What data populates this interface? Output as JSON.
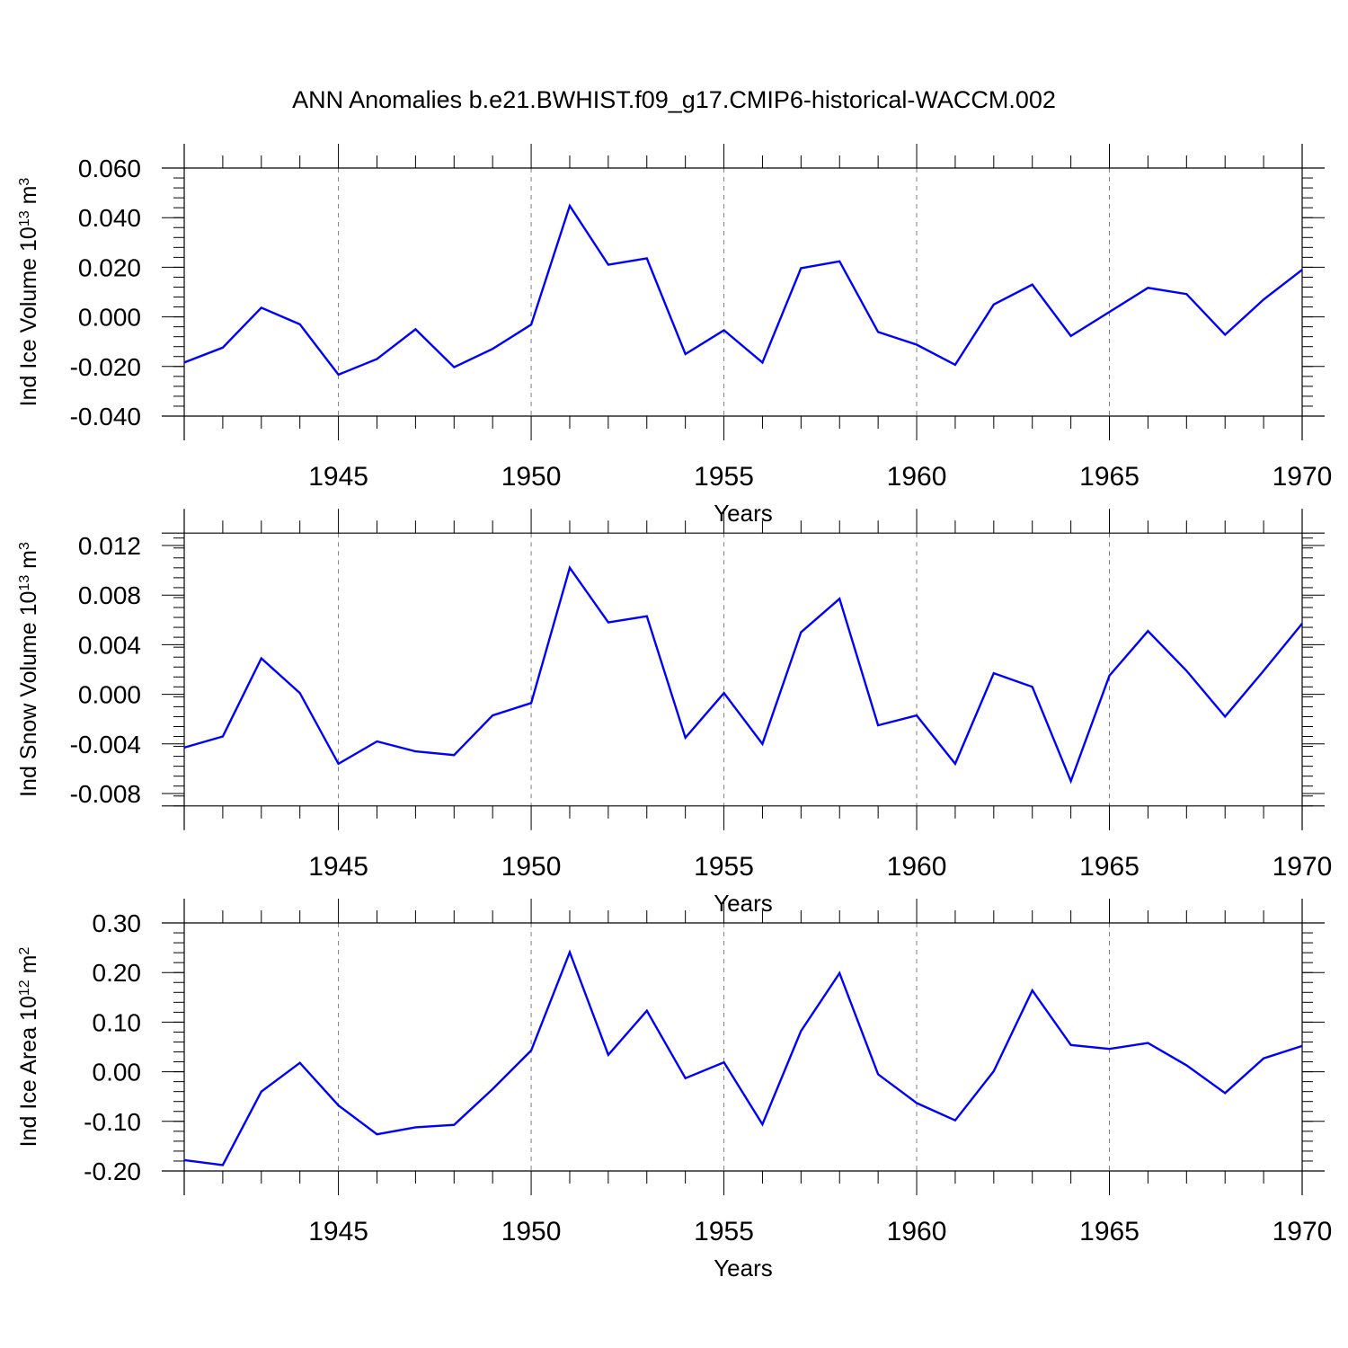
{
  "title": "ANN Anomalies b.e21.BWHIST.f09_g17.CMIP6-historical-WACCM.002",
  "colors": {
    "line": "#0000ff",
    "axis": "#000000",
    "grid": "#808080"
  },
  "chart_data": [
    {
      "type": "line",
      "xlabel": "Years",
      "ylabel": {
        "prefix": "Ind Ice Volume 10",
        "exp": "13",
        "unit": " m",
        "unit_exp": "3"
      },
      "xlim": [
        1941,
        1970
      ],
      "ylim": [
        -0.04,
        0.06
      ],
      "yticks": [
        "-0.040",
        "-0.020",
        "0.000",
        "0.020",
        "0.040",
        "0.060"
      ],
      "ytick_values": [
        -0.04,
        -0.02,
        0.0,
        0.02,
        0.04,
        0.06
      ],
      "xticks": [
        "1945",
        "1950",
        "1955",
        "1960",
        "1965",
        "1970"
      ],
      "xtick_values": [
        1945,
        1950,
        1955,
        1960,
        1965,
        1970
      ],
      "grid": "vertical dashed at major x ticks",
      "x": [
        1941,
        1942,
        1943,
        1944,
        1945,
        1946,
        1947,
        1948,
        1949,
        1950,
        1951,
        1952,
        1953,
        1954,
        1955,
        1956,
        1957,
        1958,
        1959,
        1960,
        1961,
        1962,
        1963,
        1964,
        1965,
        1966,
        1967,
        1968,
        1969,
        1970
      ],
      "values": [
        -0.0184,
        -0.0124,
        0.0037,
        -0.003,
        -0.0233,
        -0.017,
        -0.005,
        -0.0203,
        -0.0129,
        -0.0031,
        0.0448,
        0.021,
        0.0236,
        -0.015,
        -0.0054,
        -0.0184,
        0.0196,
        0.0224,
        -0.0061,
        -0.0112,
        -0.0193,
        0.005,
        0.013,
        -0.0077,
        0.002,
        0.0117,
        0.0092,
        -0.0072,
        0.007,
        0.019
      ]
    },
    {
      "type": "line",
      "xlabel": "Years",
      "ylabel": {
        "prefix": "Ind Snow Volume 10",
        "exp": "13",
        "unit": " m",
        "unit_exp": "3"
      },
      "xlim": [
        1941,
        1970
      ],
      "ylim": [
        -0.009,
        0.013
      ],
      "yticks": [
        "-0.008",
        "-0.004",
        "0.000",
        "0.004",
        "0.008",
        "0.012"
      ],
      "ytick_values": [
        -0.008,
        -0.004,
        0.0,
        0.004,
        0.008,
        0.012
      ],
      "xticks": [
        "1945",
        "1950",
        "1955",
        "1960",
        "1965",
        "1970"
      ],
      "xtick_values": [
        1945,
        1950,
        1955,
        1960,
        1965,
        1970
      ],
      "grid": "vertical dashed at major x ticks",
      "x": [
        1941,
        1942,
        1943,
        1944,
        1945,
        1946,
        1947,
        1948,
        1949,
        1950,
        1951,
        1952,
        1953,
        1954,
        1955,
        1956,
        1957,
        1958,
        1959,
        1960,
        1961,
        1962,
        1963,
        1964,
        1965,
        1966,
        1967,
        1968,
        1969,
        1970
      ],
      "values": [
        -0.0043,
        -0.0034,
        0.0029,
        0.0001,
        -0.0056,
        -0.0038,
        -0.0046,
        -0.0049,
        -0.0017,
        -0.0007,
        0.0102,
        0.0058,
        0.0063,
        -0.0035,
        0.0001,
        -0.004,
        0.005,
        0.0077,
        -0.0025,
        -0.0017,
        -0.0056,
        0.0017,
        0.0006,
        -0.007,
        0.0015,
        0.0051,
        0.0019,
        -0.0018,
        0.0019,
        0.0057
      ]
    },
    {
      "type": "line",
      "xlabel": "Years",
      "ylabel": {
        "prefix": "Ind Ice Area 10",
        "exp": "12",
        "unit": " m",
        "unit_exp": "2"
      },
      "xlim": [
        1941,
        1970
      ],
      "ylim": [
        -0.2,
        0.3
      ],
      "yticks": [
        "-0.20",
        "-0.10",
        "0.00",
        "0.10",
        "0.20",
        "0.30"
      ],
      "ytick_values": [
        -0.2,
        -0.1,
        0.0,
        0.1,
        0.2,
        0.3
      ],
      "xticks": [
        "1945",
        "1950",
        "1955",
        "1960",
        "1965",
        "1970"
      ],
      "xtick_values": [
        1945,
        1950,
        1955,
        1960,
        1965,
        1970
      ],
      "grid": "vertical dashed at major x ticks",
      "x": [
        1941,
        1942,
        1943,
        1944,
        1945,
        1946,
        1947,
        1948,
        1949,
        1950,
        1951,
        1952,
        1953,
        1954,
        1955,
        1956,
        1957,
        1958,
        1959,
        1960,
        1961,
        1962,
        1963,
        1964,
        1965,
        1966,
        1967,
        1968,
        1969,
        1970
      ],
      "values": [
        -0.178,
        -0.188,
        -0.04,
        0.018,
        -0.068,
        -0.126,
        -0.112,
        -0.107,
        -0.035,
        0.043,
        0.241,
        0.034,
        0.123,
        -0.013,
        0.019,
        -0.106,
        0.082,
        0.199,
        -0.005,
        -0.063,
        -0.098,
        0.001,
        0.164,
        0.054,
        0.046,
        0.058,
        0.013,
        -0.043,
        0.027,
        0.052
      ]
    }
  ]
}
